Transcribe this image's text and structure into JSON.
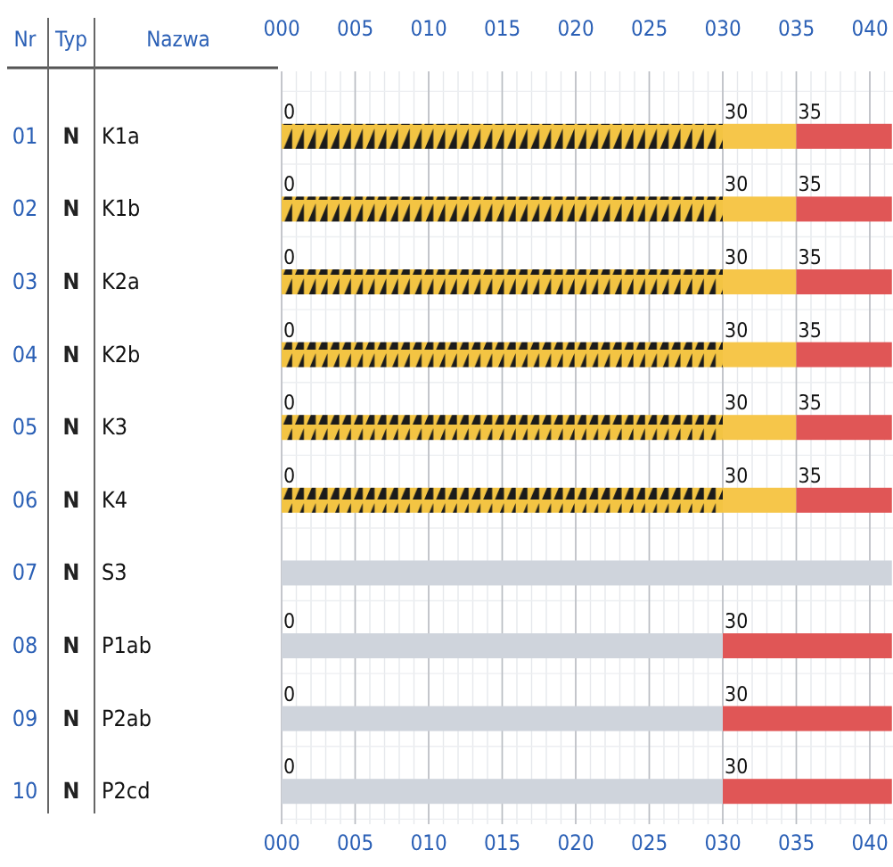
{
  "chart_data": {
    "type": "bar",
    "orientation": "horizontal",
    "stacked": true,
    "categories": [
      "K1a",
      "K1b",
      "K2a",
      "K2b",
      "K3",
      "K4",
      "S3",
      "P1ab",
      "P2ab",
      "P2cd"
    ],
    "series": [
      {
        "color": "#f3c443",
        "values": [
          30,
          30,
          30,
          30,
          30,
          30,
          null,
          null,
          null,
          null
        ]
      },
      {
        "color": "#cfd4dc",
        "values": [
          null,
          null,
          null,
          null,
          null,
          null,
          41.5,
          30,
          30,
          30
        ]
      },
      {
        "color": "#f6c64a",
        "values": [
          5,
          5,
          5,
          5,
          5,
          5,
          null,
          null,
          null,
          null
        ]
      },
      {
        "color": "#e05656",
        "values": [
          6.5,
          6.5,
          6.5,
          6.5,
          6.5,
          6.5,
          null,
          11.5,
          11.5,
          11.5
        ]
      }
    ],
    "xlim": [
      0,
      41.5
    ],
    "xticks": [
      {
        "value": 0,
        "label": "000"
      },
      {
        "value": 5,
        "label": "005"
      },
      {
        "value": 10,
        "label": "010"
      },
      {
        "value": 15,
        "label": "015"
      },
      {
        "value": 20,
        "label": "020"
      },
      {
        "value": 25,
        "label": "025"
      },
      {
        "value": 30,
        "label": "030"
      },
      {
        "value": 35,
        "label": "035"
      },
      {
        "value": 40,
        "label": "040"
      }
    ],
    "x2lim": [
      0,
      41.5
    ],
    "x2ticks": [
      {
        "value": 0,
        "label": "000"
      },
      {
        "value": 5,
        "label": "005"
      },
      {
        "value": 10,
        "label": "010"
      },
      {
        "value": 15,
        "label": "015"
      },
      {
        "value": 20,
        "label": "020"
      },
      {
        "value": 25,
        "label": "025"
      },
      {
        "value": 30,
        "label": "030"
      },
      {
        "value": 35,
        "label": "035"
      },
      {
        "value": 40,
        "label": "040"
      }
    ],
    "grid": "x",
    "annotations": [
      "Nr",
      "Typ",
      "Nazwa",
      "01",
      "02",
      "03",
      "04",
      "05",
      "06",
      "07",
      "08",
      "09",
      "10",
      "N",
      "N",
      "N",
      "N",
      "N",
      "N",
      "N",
      "N",
      "N",
      "N",
      {
        "text": "0",
        "x": 0,
        "y": "K1a"
      },
      {
        "text": "30",
        "x": 30,
        "y": "K1a"
      },
      {
        "text": "35",
        "x": 35,
        "y": "K1a"
      },
      {
        "text": "0",
        "x": 0,
        "y": "K1b"
      },
      {
        "text": "30",
        "x": 30,
        "y": "K1b"
      },
      {
        "text": "35",
        "x": 35,
        "y": "K1b"
      },
      {
        "text": "0",
        "x": 0,
        "y": "K2a"
      },
      {
        "text": "30",
        "x": 30,
        "y": "K2a"
      },
      {
        "text": "35",
        "x": 35,
        "y": "K2a"
      },
      {
        "text": "0",
        "x": 0,
        "y": "K2b"
      },
      {
        "text": "30",
        "x": 30,
        "y": "K2b"
      },
      {
        "text": "35",
        "x": 35,
        "y": "K2b"
      },
      {
        "text": "0",
        "x": 0,
        "y": "K3"
      },
      {
        "text": "30",
        "x": 30,
        "y": "K3"
      },
      {
        "text": "35",
        "x": 35,
        "y": "K3"
      },
      {
        "text": "0",
        "x": 0,
        "y": "K4"
      },
      {
        "text": "30",
        "x": 30,
        "y": "K4"
      },
      {
        "text": "35",
        "x": 35,
        "y": "K4"
      },
      {
        "text": "0",
        "x": 0,
        "y": "P1ab"
      },
      {
        "text": "30",
        "x": 30,
        "y": "P1ab"
      },
      {
        "text": "0",
        "x": 0,
        "y": "P2ab"
      },
      {
        "text": "30",
        "x": 30,
        "y": "P2ab"
      },
      {
        "text": "0",
        "x": 0,
        "y": "P2cd"
      },
      {
        "text": "30",
        "x": 30,
        "y": "P2cd"
      }
    ]
  }
}
